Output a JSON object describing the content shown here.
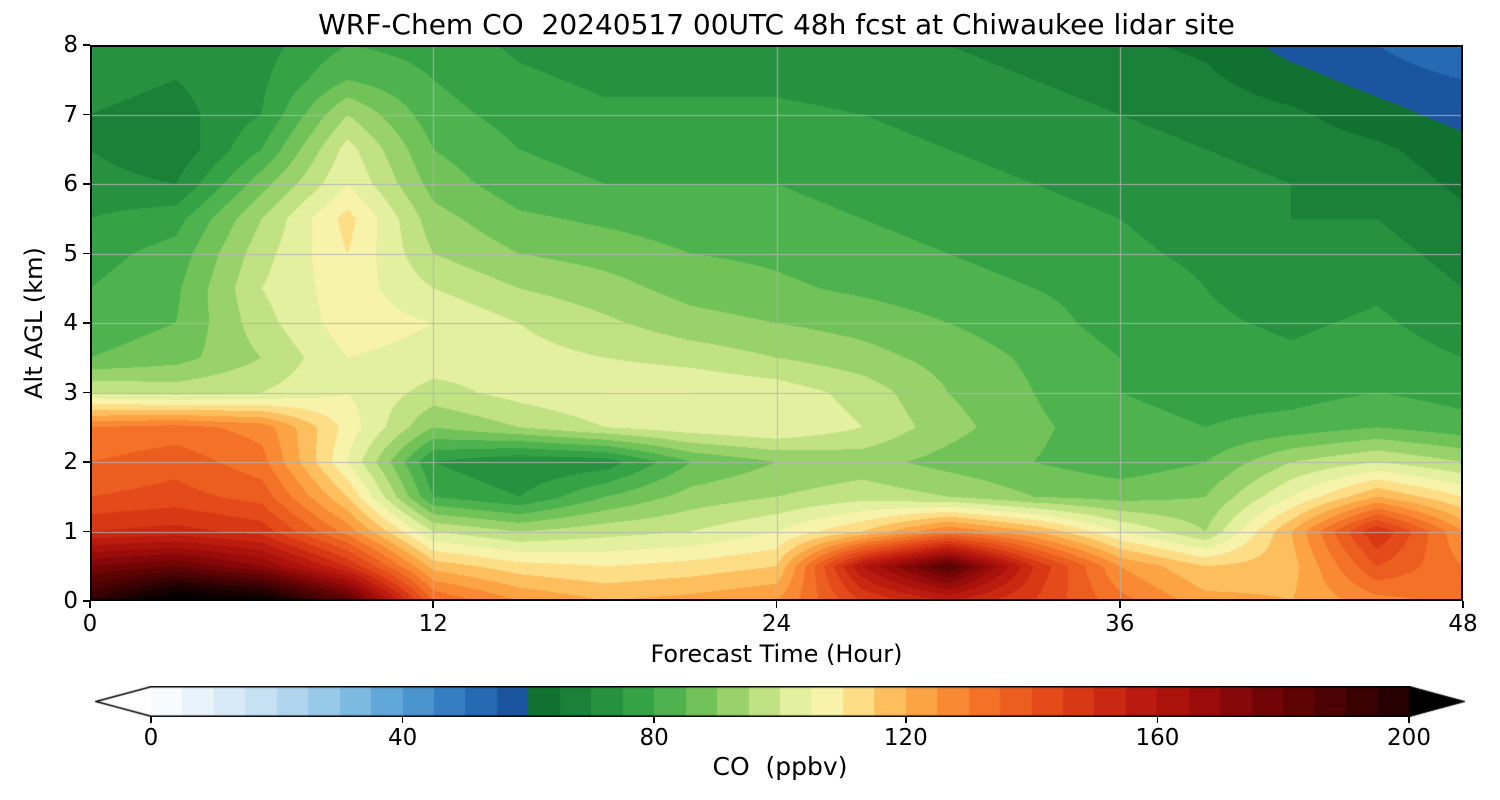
{
  "chart_data": {
    "type": "heatmap",
    "title": "WRF-Chem CO  20240517 00UTC 48h fcst at Chiwaukee lidar site",
    "xlabel": "Forecast Time (Hour)",
    "ylabel": "Alt AGL (km)",
    "colorbar_label": "CO  (ppbv)",
    "xlim": [
      0,
      48
    ],
    "ylim": [
      0,
      8
    ],
    "x_ticks": [
      0,
      12,
      24,
      36,
      48
    ],
    "y_ticks": [
      0,
      1,
      2,
      3,
      4,
      5,
      6,
      7,
      8
    ],
    "grid": true,
    "legend_position": "bottom-colorbar",
    "colorbar_ticks": [
      0,
      40,
      80,
      120,
      160,
      200
    ],
    "colorbar_range": [
      0,
      200
    ],
    "level_step": 5,
    "colormap": [
      [
        -10,
        "#ffffff"
      ],
      [
        0,
        "#ffffff"
      ],
      [
        5,
        "#f0f7fd"
      ],
      [
        10,
        "#e0eef9"
      ],
      [
        15,
        "#d0e6f5"
      ],
      [
        20,
        "#bcdcf1"
      ],
      [
        25,
        "#a4d0ec"
      ],
      [
        30,
        "#8ac2e5"
      ],
      [
        35,
        "#6fb1de"
      ],
      [
        40,
        "#549dd4"
      ],
      [
        45,
        "#3d88c8"
      ],
      [
        50,
        "#2b73ba"
      ],
      [
        55,
        "#1f60ab"
      ],
      [
        58,
        "#1a539c"
      ],
      [
        60,
        "#0b6a2d"
      ],
      [
        65,
        "#157834"
      ],
      [
        70,
        "#20883b"
      ],
      [
        75,
        "#2c9942"
      ],
      [
        80,
        "#3fab49"
      ],
      [
        85,
        "#5cba52"
      ],
      [
        90,
        "#83ca5f"
      ],
      [
        95,
        "#aeda74"
      ],
      [
        100,
        "#d4ea92"
      ],
      [
        104,
        "#ecf4a6"
      ],
      [
        108,
        "#f9f3ab"
      ],
      [
        112,
        "#fee08b"
      ],
      [
        116,
        "#fdc968"
      ],
      [
        120,
        "#fdaf4c"
      ],
      [
        126,
        "#fb9136"
      ],
      [
        132,
        "#f47428"
      ],
      [
        140,
        "#e9531d"
      ],
      [
        148,
        "#d83614"
      ],
      [
        156,
        "#c01d10"
      ],
      [
        164,
        "#a60f0b"
      ],
      [
        172,
        "#880708"
      ],
      [
        180,
        "#670304"
      ],
      [
        190,
        "#430102"
      ],
      [
        200,
        "#1e0000"
      ],
      [
        212,
        "#000000"
      ]
    ],
    "x": [
      0,
      3,
      6,
      9,
      12,
      15,
      18,
      21,
      24,
      27,
      30,
      33,
      36,
      39,
      42,
      45,
      48
    ],
    "y": [
      0,
      0.5,
      1,
      1.5,
      2,
      2.5,
      3,
      3.5,
      4,
      4.5,
      5,
      5.5,
      6,
      6.5,
      7,
      7.5,
      8
    ],
    "values": [
      [
        195,
        215,
        210,
        185,
        135,
        125,
        120,
        122,
        125,
        145,
        155,
        145,
        132,
        122,
        120,
        128,
        132
      ],
      [
        175,
        180,
        170,
        150,
        118,
        112,
        110,
        112,
        115,
        160,
        185,
        150,
        125,
        115,
        118,
        140,
        130
      ],
      [
        150,
        152,
        148,
        128,
        100,
        95,
        98,
        100,
        105,
        115,
        130,
        120,
        105,
        95,
        120,
        150,
        125
      ],
      [
        140,
        142,
        138,
        115,
        80,
        75,
        85,
        92,
        95,
        98,
        95,
        90,
        88,
        90,
        105,
        120,
        110
      ],
      [
        135,
        138,
        132,
        105,
        75,
        70,
        72,
        85,
        90,
        92,
        88,
        85,
        82,
        85,
        95,
        100,
        95
      ],
      [
        130,
        132,
        128,
        108,
        90,
        95,
        100,
        103,
        105,
        100,
        92,
        86,
        82,
        80,
        82,
        85,
        82
      ],
      [
        100,
        98,
        100,
        105,
        98,
        102,
        105,
        105,
        103,
        98,
        90,
        85,
        80,
        78,
        78,
        80,
        78
      ],
      [
        85,
        88,
        95,
        105,
        103,
        102,
        100,
        98,
        95,
        92,
        88,
        84,
        80,
        78,
        76,
        78,
        75
      ],
      [
        82,
        85,
        98,
        108,
        105,
        100,
        96,
        92,
        90,
        88,
        85,
        82,
        78,
        76,
        74,
        76,
        72
      ],
      [
        80,
        84,
        100,
        108,
        100,
        95,
        92,
        88,
        86,
        84,
        82,
        80,
        78,
        75,
        72,
        74,
        70
      ],
      [
        78,
        82,
        98,
        110,
        95,
        90,
        88,
        85,
        84,
        82,
        80,
        78,
        76,
        74,
        72,
        72,
        68
      ],
      [
        75,
        78,
        95,
        112,
        92,
        86,
        84,
        82,
        82,
        80,
        78,
        76,
        75,
        73,
        70,
        70,
        66
      ],
      [
        72,
        70,
        88,
        105,
        88,
        82,
        80,
        80,
        80,
        78,
        76,
        75,
        74,
        72,
        70,
        68,
        64
      ],
      [
        70,
        66,
        80,
        102,
        85,
        80,
        78,
        78,
        78,
        76,
        75,
        74,
        72,
        70,
        68,
        66,
        62
      ],
      [
        70,
        68,
        75,
        95,
        82,
        78,
        76,
        76,
        76,
        75,
        74,
        72,
        70,
        68,
        66,
        62,
        58
      ],
      [
        72,
        70,
        74,
        85,
        80,
        76,
        74,
        74,
        74,
        73,
        72,
        70,
        68,
        66,
        62,
        58,
        55
      ],
      [
        74,
        72,
        73,
        80,
        78,
        74,
        72,
        72,
        73,
        72,
        70,
        68,
        66,
        64,
        58,
        55,
        50
      ]
    ]
  }
}
